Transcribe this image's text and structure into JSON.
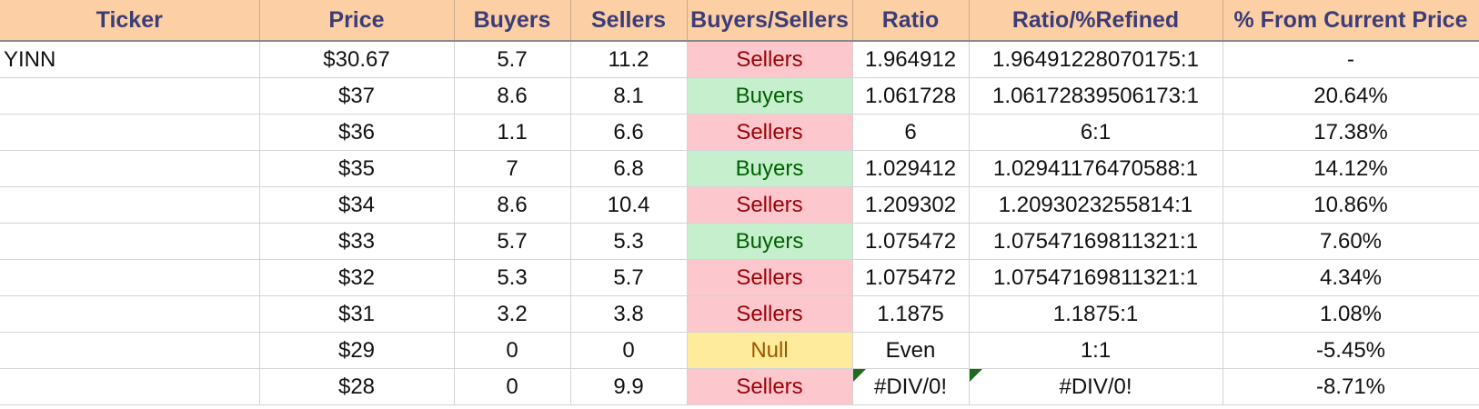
{
  "columns": [
    "Ticker",
    "Price",
    "Buyers",
    "Sellers",
    "Buyers/Sellers",
    "Ratio",
    "Ratio/%Refined",
    "% From Current Price"
  ],
  "rows": [
    {
      "ticker": "YINN",
      "price": "$30.67",
      "buyers": "5.7",
      "sellers": "11.2",
      "signal": "Sellers",
      "ratio": "1.964912",
      "refined": "1.96491228070175:1",
      "from_current": "-",
      "error_flag": false
    },
    {
      "ticker": "",
      "price": "$37",
      "buyers": "8.6",
      "sellers": "8.1",
      "signal": "Buyers",
      "ratio": "1.061728",
      "refined": "1.06172839506173:1",
      "from_current": "20.64%",
      "error_flag": false
    },
    {
      "ticker": "",
      "price": "$36",
      "buyers": "1.1",
      "sellers": "6.6",
      "signal": "Sellers",
      "ratio": "6",
      "refined": "6:1",
      "from_current": "17.38%",
      "error_flag": false
    },
    {
      "ticker": "",
      "price": "$35",
      "buyers": "7",
      "sellers": "6.8",
      "signal": "Buyers",
      "ratio": "1.029412",
      "refined": "1.02941176470588:1",
      "from_current": "14.12%",
      "error_flag": false
    },
    {
      "ticker": "",
      "price": "$34",
      "buyers": "8.6",
      "sellers": "10.4",
      "signal": "Sellers",
      "ratio": "1.209302",
      "refined": "1.2093023255814:1",
      "from_current": "10.86%",
      "error_flag": false
    },
    {
      "ticker": "",
      "price": "$33",
      "buyers": "5.7",
      "sellers": "5.3",
      "signal": "Buyers",
      "ratio": "1.075472",
      "refined": "1.07547169811321:1",
      "from_current": "7.60%",
      "error_flag": false
    },
    {
      "ticker": "",
      "price": "$32",
      "buyers": "5.3",
      "sellers": "5.7",
      "signal": "Sellers",
      "ratio": "1.075472",
      "refined": "1.07547169811321:1",
      "from_current": "4.34%",
      "error_flag": false
    },
    {
      "ticker": "",
      "price": "$31",
      "buyers": "3.2",
      "sellers": "3.8",
      "signal": "Sellers",
      "ratio": "1.1875",
      "refined": "1.1875:1",
      "from_current": "1.08%",
      "error_flag": false
    },
    {
      "ticker": "",
      "price": "$29",
      "buyers": "0",
      "sellers": "0",
      "signal": "Null",
      "ratio": "Even",
      "refined": "1:1",
      "from_current": "-5.45%",
      "error_flag": false
    },
    {
      "ticker": "",
      "price": "$28",
      "buyers": "0",
      "sellers": "9.9",
      "signal": "Sellers",
      "ratio": "#DIV/0!",
      "refined": "#DIV/0!",
      "from_current": "-8.71%",
      "error_flag": true
    }
  ],
  "colors": {
    "header_bg": "#fcd0a4",
    "header_text": "#3c3c78",
    "sellers_bg": "#fcc8ce",
    "sellers_text": "#9c0006",
    "buyers_bg": "#c6efce",
    "buyers_text": "#006100",
    "null_bg": "#ffeb9c",
    "null_text": "#9c5700",
    "error_flag": "#1d6b1d"
  }
}
